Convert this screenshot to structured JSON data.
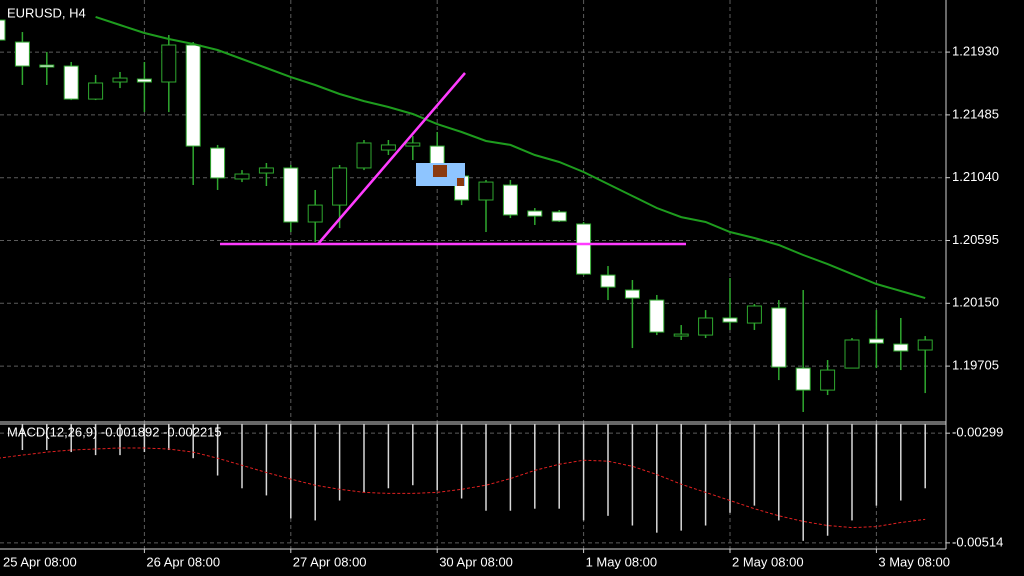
{
  "chart_data": [
    {
      "type": "candlestick",
      "title": "EURUSD, H4",
      "categories": [
        "25 Apr 08:00",
        null,
        null,
        null,
        null,
        null,
        "26 Apr 08:00",
        null,
        null,
        null,
        null,
        null,
        "27 Apr 08:00",
        null,
        null,
        null,
        null,
        null,
        "30 Apr 08:00",
        null,
        null,
        null,
        null,
        null,
        "1 May 08:00",
        null,
        null,
        null,
        null,
        null,
        "2 May 08:00",
        null,
        null,
        null,
        null,
        null,
        "3 May 08:00",
        null,
        null
      ],
      "open": [
        1.22157,
        1.22001,
        1.21838,
        1.21831,
        1.21597,
        1.21718,
        1.21739,
        1.21718,
        1.2198,
        1.2125,
        1.21031,
        1.21073,
        1.21109,
        1.20726,
        1.20846,
        1.21109,
        1.21236,
        1.21264,
        1.21264,
        1.21052,
        1.20882,
        1.20988,
        1.20804,
        1.20797,
        1.20712,
        1.2035,
        1.20244,
        1.20173,
        1.19918,
        1.19925,
        1.20046,
        1.2001,
        1.20117,
        1.19691,
        1.19535,
        1.19691,
        1.19897,
        1.19861,
        1.19819
      ],
      "high": [
        1.22157,
        1.22072,
        1.21931,
        1.2186,
        1.21768,
        1.21789,
        1.2186,
        1.22051,
        1.22001,
        1.21272,
        1.21094,
        1.21144,
        1.2113,
        1.20953,
        1.2113,
        1.21307,
        1.21307,
        1.21335,
        1.21364,
        1.21109,
        1.21024,
        1.21024,
        1.20825,
        1.20811,
        1.20726,
        1.20414,
        1.20315,
        1.20209,
        1.19996,
        1.20102,
        1.20329,
        1.20145,
        1.20173,
        1.20244,
        1.19748,
        1.19904,
        1.20102,
        1.20046,
        1.19918
      ],
      "low": [
        1.22015,
        1.21697,
        1.21697,
        1.2159,
        1.2159,
        1.21675,
        1.21505,
        1.21505,
        1.20988,
        1.20953,
        1.21009,
        1.20981,
        1.20655,
        1.20584,
        1.20683,
        1.21094,
        1.21201,
        1.21165,
        1.21024,
        1.20846,
        1.20655,
        1.20754,
        1.20705,
        1.20726,
        1.2035,
        1.20173,
        1.19833,
        1.19925,
        1.1989,
        1.19904,
        1.19961,
        1.19961,
        1.19606,
        1.1938,
        1.195,
        1.19691,
        1.19691,
        1.19677,
        1.19514
      ],
      "close": [
        1.22015,
        1.21831,
        1.21824,
        1.21597,
        1.21711,
        1.21746,
        1.21718,
        1.2198,
        1.21264,
        1.21038,
        1.21066,
        1.21109,
        1.20726,
        1.20846,
        1.21109,
        1.21286,
        1.21272,
        1.21286,
        1.21052,
        1.20882,
        1.21009,
        1.20776,
        1.20768,
        1.20733,
        1.20357,
        1.20265,
        1.20187,
        1.19946,
        1.19932,
        1.20046,
        1.20017,
        1.20131,
        1.19698,
        1.19535,
        1.19677,
        1.1989,
        1.19868,
        1.19812,
        1.1989
      ],
      "wick_color": "#2fa82f",
      "up_color": "#000000",
      "down_color": "#ffffff",
      "series": [
        {
          "color": "#1e9c1e",
          "values": [
            null,
            null,
            null,
            null,
            1.22179,
            1.22122,
            1.22065,
            1.22023,
            1.21987,
            1.21945,
            1.21881,
            1.21817,
            1.21753,
            1.21697,
            1.21633,
            1.21583,
            1.21541,
            1.21491,
            1.2142,
            1.21364,
            1.213,
            1.21272,
            1.21201,
            1.21151,
            1.2108,
            1.20995,
            1.2091,
            1.20825,
            1.20761,
            1.20726,
            1.20655,
            1.20613,
            1.20563,
            1.20492,
            1.20428,
            1.20357,
            1.20287,
            1.20237,
            1.20187
          ]
        }
      ],
      "ylim": [
        1.19309,
        1.22299
      ],
      "yticks": [
        {
          "value": 1.2193,
          "label": "1.21930"
        },
        {
          "value": 1.21485,
          "label": "1.21485"
        },
        {
          "value": 1.2104,
          "label": "1.21040"
        },
        {
          "value": 1.20595,
          "label": "1.20595"
        },
        {
          "value": 1.2015,
          "label": "1.20150"
        },
        {
          "value": 1.19705,
          "label": "1.19705"
        }
      ],
      "grid": true
    },
    {
      "type": "macd",
      "title": "MACD(12,26,9) -0.001892 -0.002215",
      "histogram": [
        -0.00328,
        -0.00332,
        -0.00332,
        -0.00336,
        -0.00342,
        -0.00342,
        -0.00336,
        -0.00332,
        -0.00348,
        -0.00382,
        -0.00407,
        -0.00421,
        -0.00466,
        -0.0047,
        -0.00431,
        -0.00415,
        -0.00407,
        -0.00401,
        -0.00411,
        -0.00427,
        -0.00451,
        -0.00451,
        -0.00447,
        -0.00447,
        -0.0047,
        -0.00461,
        -0.0048,
        -0.00494,
        -0.0049,
        -0.0048,
        -0.00455,
        -0.00441,
        -0.0047,
        -0.0051,
        -0.005,
        -0.0047,
        -0.00441,
        -0.00431,
        -0.00407
      ],
      "histogram_color": "#d8d8d8",
      "signal": [
        -0.00348,
        -0.00342,
        -0.00336,
        -0.00332,
        -0.0033,
        -0.00328,
        -0.00328,
        -0.0033,
        -0.00336,
        -0.00348,
        -0.00362,
        -0.00376,
        -0.00389,
        -0.00401,
        -0.00409,
        -0.00415,
        -0.00417,
        -0.00417,
        -0.00415,
        -0.00409,
        -0.00401,
        -0.00388,
        -0.00372,
        -0.0036,
        -0.00352,
        -0.00354,
        -0.00364,
        -0.0038,
        -0.00399,
        -0.00415,
        -0.00431,
        -0.00447,
        -0.00461,
        -0.00472,
        -0.0048,
        -0.00484,
        -0.00482,
        -0.00474,
        -0.00468
      ],
      "signal_color": "#e02020",
      "ylim": [
        -0.00526,
        -0.00281
      ],
      "yticks": [
        {
          "value": -0.00299,
          "label": "-0.00299"
        },
        {
          "value": -0.00514,
          "label": "-0.00514"
        }
      ],
      "grid": true
    }
  ]
}
